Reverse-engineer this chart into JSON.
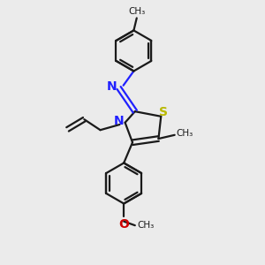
{
  "background_color": "#ebebeb",
  "bond_color": "#1a1a1a",
  "n_color": "#2020ff",
  "s_color": "#b8b800",
  "o_color": "#cc0000",
  "line_width": 1.6,
  "figsize": [
    3.0,
    3.0
  ],
  "dpi": 100,
  "xlim": [
    0,
    10
  ],
  "ylim": [
    0,
    10.5
  ]
}
